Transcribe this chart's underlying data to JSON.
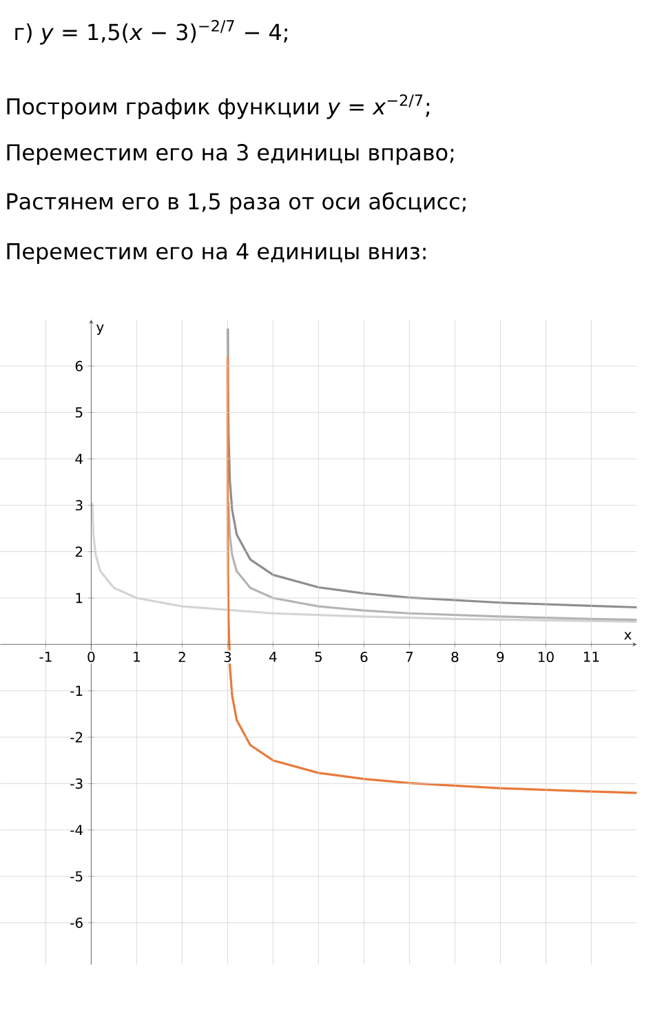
{
  "chart_data": {
    "type": "line",
    "title": "г) *y* = 1,5(*x* − 3)$^{−2/7}$ − 4;",
    "annotations": [
      "Построим график функции *y* = *x*$^{−2/7}$;",
      "Переместим его на 3 единицы вправо;",
      "Растянем его в 1,5 раза от оси абсцисс;",
      "Переместим его на 4 единицы вниз:"
    ],
    "xlabel": "x",
    "ylabel": "y",
    "series": [
      {
        "color": "#d4d4d4",
        "x": [
          0.02,
          0.05,
          0.1,
          0.2,
          0.5,
          1,
          2,
          4,
          6,
          8,
          10,
          12
        ],
        "values": [
          3.06,
          2.35,
          1.93,
          1.58,
          1.22,
          1,
          0.82,
          0.67,
          0.6,
          0.55,
          0.52,
          0.49
        ]
      },
      {
        "color": "#b4b4b4",
        "x": [
          3.02,
          3.05,
          3.1,
          3.2,
          3.5,
          4,
          5,
          6,
          7,
          9,
          11,
          12
        ],
        "values": [
          3.06,
          2.35,
          1.93,
          1.58,
          1.22,
          1,
          0.82,
          0.73,
          0.67,
          0.6,
          0.55,
          0.53
        ]
      },
      {
        "color": "#8e8e8e",
        "x": [
          3.005,
          3.01,
          3.02,
          3.05,
          3.1,
          3.2,
          3.5,
          4,
          5,
          6,
          7,
          9,
          11,
          12
        ],
        "values": [
          6.81,
          5.6,
          4.59,
          3.53,
          2.9,
          2.37,
          1.83,
          1.5,
          1.23,
          1.1,
          1.01,
          0.9,
          0.83,
          0.8
        ]
      },
      {
        "color": "#e8793a",
        "x": [
          3.0012,
          3.0015,
          3.002,
          3.005,
          3.01,
          3.02,
          3.05,
          3.1,
          3.2,
          3.5,
          4,
          5,
          6,
          7,
          9,
          11,
          12
        ],
        "values": [
          6.2,
          5.6,
          4.85,
          2.81,
          1.6,
          0.59,
          -0.47,
          -1.1,
          -1.63,
          -2.17,
          -2.5,
          -2.77,
          -2.9,
          -2.99,
          -3.1,
          -3.17,
          -3.2
        ]
      }
    ],
    "xlim": [
      -2,
      12
    ],
    "ylim": [
      -6.9,
      7
    ],
    "xticks": [
      -1,
      0,
      1,
      2,
      3,
      4,
      5,
      6,
      7,
      8,
      9,
      10,
      11
    ],
    "yticks": [
      -6,
      -5,
      -4,
      -3,
      -2,
      -1,
      1,
      2,
      3,
      4,
      5,
      6
    ],
    "grid": true
  }
}
